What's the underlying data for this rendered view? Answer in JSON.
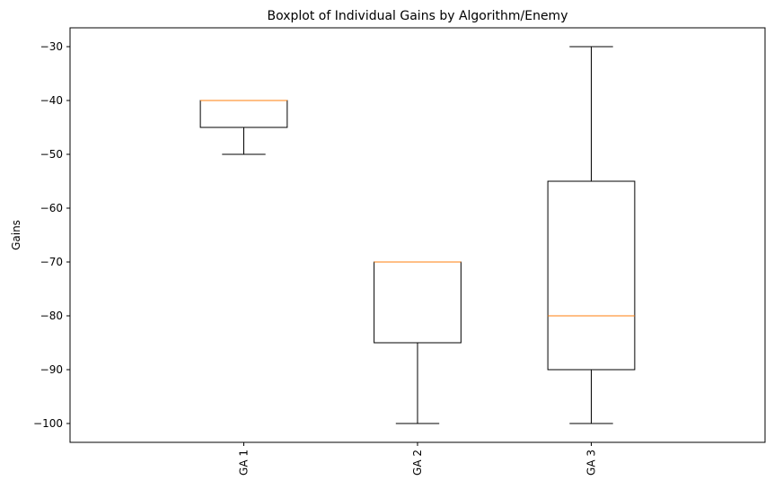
{
  "chart_data": {
    "type": "boxplot",
    "title": "Boxplot of Individual Gains by Algorithm/Enemy",
    "xlabel": "",
    "ylabel": "Gains",
    "ylim": [
      -103.5,
      -26.5
    ],
    "yticks": [
      -30,
      -40,
      -50,
      -60,
      -70,
      -80,
      -90,
      -100
    ],
    "yticks_display": [
      "−30",
      "−40",
      "−50",
      "−60",
      "−70",
      "−80",
      "−90",
      "−100"
    ],
    "categories": [
      "GA 1",
      "GA 2",
      "GA 3"
    ],
    "boxes": [
      {
        "name": "GA 1",
        "whisker_low": -50,
        "q1": -45,
        "median": -40,
        "q3": -40,
        "whisker_high": -40
      },
      {
        "name": "GA 2",
        "whisker_low": -100,
        "q1": -85,
        "median": -70,
        "q3": -70,
        "whisker_high": -70
      },
      {
        "name": "GA 3",
        "whisker_low": -100,
        "q1": -90,
        "median": -80,
        "q3": -55,
        "whisker_high": -30
      }
    ],
    "grid": false,
    "colors": {
      "box": "#000000",
      "median": "#ff7f0e"
    }
  }
}
